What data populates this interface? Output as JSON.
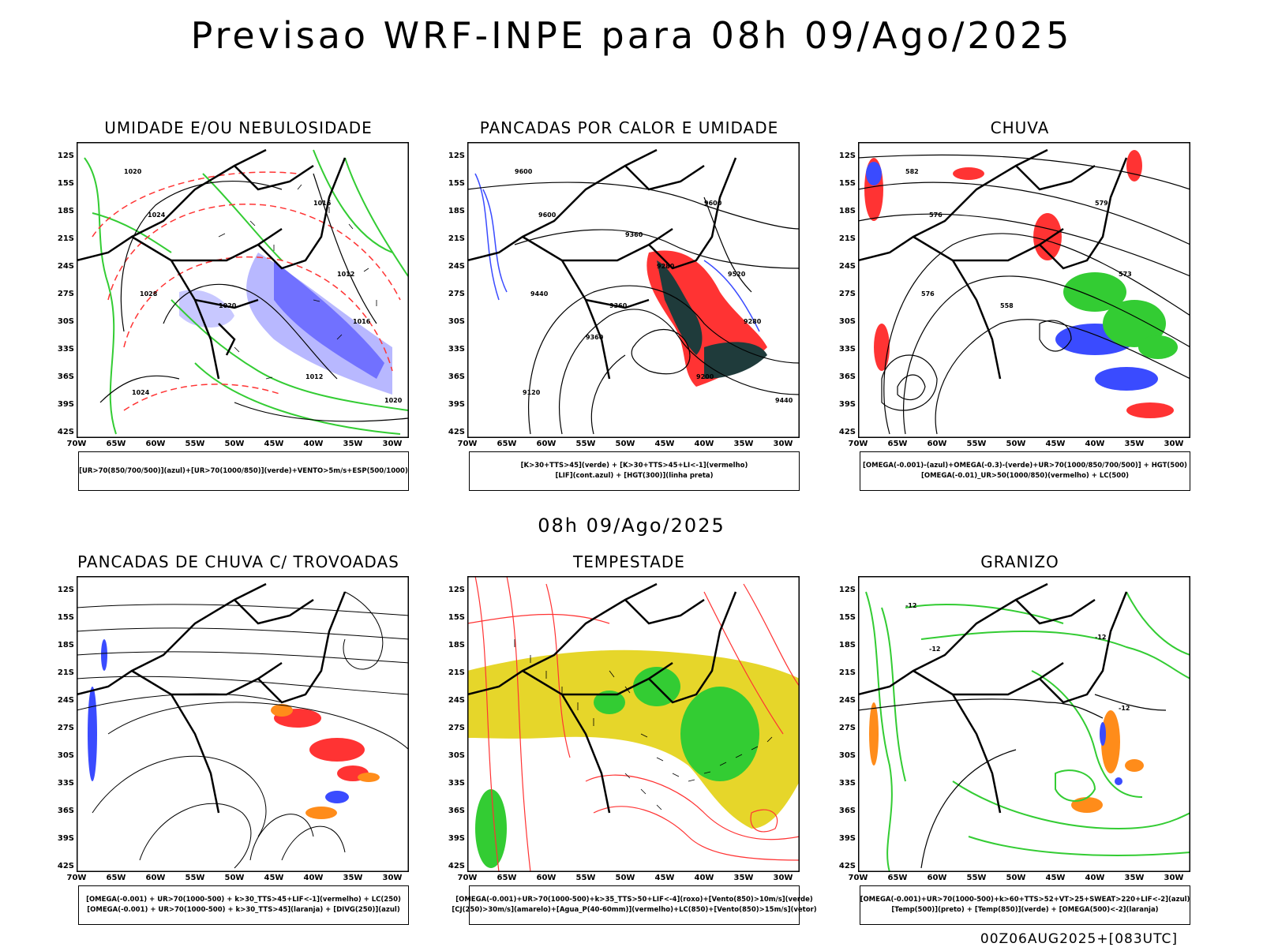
{
  "header": {
    "title": "Previsao WRF-INPE  para 08h 09/Ago/2025"
  },
  "middle": {
    "title": "08h 09/Ago/2025"
  },
  "footer": {
    "run": "00Z06AUG2025+[083UTC]"
  },
  "axes": {
    "lat": [
      "12S",
      "15S",
      "18S",
      "21S",
      "24S",
      "27S",
      "30S",
      "33S",
      "36S",
      "39S",
      "42S"
    ],
    "lon": [
      "70W",
      "65W",
      "60W",
      "55W",
      "50W",
      "45W",
      "40W",
      "35W",
      "30W"
    ]
  },
  "panels": [
    {
      "title": "UMIDADE E/OU NEBULOSIDADE",
      "legend": [
        "[UR>70(850/700/500)](azul)+[UR>70(1000/850)](verde)+VENTO>5m/s+ESP(500/1000)"
      ],
      "labels": [
        "1020",
        "1016",
        "1024",
        "1012",
        "1028",
        "1020",
        "1016",
        "1012",
        "1024",
        "1020"
      ]
    },
    {
      "title": "PANCADAS POR CALOR E UMIDADE",
      "legend": [
        "[K>30+TTS>45](verde) + [K>30+TTS>45+LI<-1](vermelho)",
        "[LIF](cont.azul) + [HGT(300)](linha preta)"
      ],
      "labels": [
        "9600",
        "9600",
        "9600",
        "9520",
        "9440",
        "9360",
        "9280",
        "9200",
        "9120",
        "9440",
        "9360",
        "9280",
        "9360"
      ]
    },
    {
      "title": "CHUVA",
      "legend": [
        "[OMEGA(-0.001)-(azul)+OMEGA(-0.3)-(verde)+UR>70(1000/850/700/500)] + HGT(500)",
        "[OMEGA(-0.01)_UR>50(1000/850)(vermelho) + LC(500)"
      ],
      "labels": [
        "582",
        "579",
        "576",
        "573",
        "576",
        "558"
      ]
    },
    {
      "title": "PANCADAS DE CHUVA C/ TROVOADAS",
      "legend": [
        "[OMEGA(-0.001) + UR>70(1000-500) + k>30_TTS>45+LIF<-1](vermelho) + LC(250)",
        "[OMEGA(-0.001) + UR>70(1000-500) + k>30_TTS>45](laranja) + [DIVG(250)](azul)"
      ],
      "labels": []
    },
    {
      "title": "TEMPESTADE",
      "legend": [
        "[OMEGA(-0.001)+UR>70(1000-500)+k>35_TTS>50+LIF<-4](roxo)+[Vento(850)>10m/s](verde)",
        "[CJ(250)>30m/s](amarelo)+[Agua_P(40-60mm)](vermelho)+LC(850)+[Vento(850)>15m/s](vetor)"
      ],
      "labels": []
    },
    {
      "title": "GRANIZO",
      "legend": [
        "[OMEGA(-0.001)+UR>70(1000-500)+k>60+TTS>52+VT>25+SWEAT>220+LIF<-2](azul)",
        "[Temp(500)](preto) + [Temp(850)](verde) + [OMEGA(500)<-2](laranja)"
      ],
      "labels": [
        "-12",
        "-12",
        "-12",
        "-12"
      ]
    }
  ],
  "colors": {
    "blue": "#3a4bff",
    "green": "#33cc33",
    "red": "#ff3333",
    "orange": "#ff8c1a",
    "yellow": "#e6d62a",
    "dark": "#1f3b3b",
    "lightblue": "#9a9aff"
  }
}
